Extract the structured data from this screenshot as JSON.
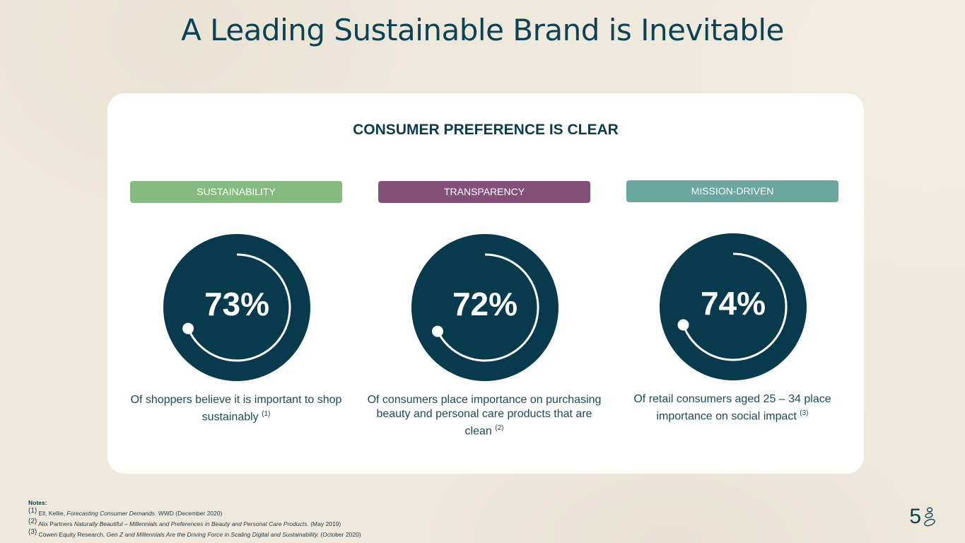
{
  "title": "A Leading Sustainable Brand is Inevitable",
  "card": {
    "heading": "CONSUMER PREFERENCE IS CLEAR",
    "columns": [
      {
        "tag": "SUSTAINABILITY",
        "color": "#84ba7f",
        "percent": "73%",
        "value": 73,
        "desc": "Of shoppers believe it is important to shop sustainably",
        "ref": "(1)"
      },
      {
        "tag": "TRANSPARENCY",
        "color": "#83507a",
        "percent": "72%",
        "value": 72,
        "desc": "Of consumers place importance on purchasing beauty and personal care products that are clean",
        "ref": "(2)"
      },
      {
        "tag": "MISSION-DRIVEN",
        "color": "#69a69d",
        "percent": "74%",
        "value": 74,
        "desc": "Of retail consumers aged 25 – 34 place importance on social impact",
        "ref": "(3)"
      }
    ]
  },
  "notes": {
    "label": "Notes:",
    "items": [
      {
        "ref": "(1)",
        "pre": "Ell, Kellie, ",
        "italic": "Forecasting Consumer Demands",
        "post": ". WWD (December 2020)"
      },
      {
        "ref": "(2)",
        "pre": "Alix Partners ",
        "italic": "Naturally Beautiful – Millennials and Preferences in Beauty and Personal Care Products.",
        "post": " (May 2019)"
      },
      {
        "ref": "(3)",
        "pre": "Cowen Equity Research, ",
        "italic": "Gen Z and Millennials Are the Driving Force in Scaling Digital and Sustainability.",
        "post": " (October 2020)"
      }
    ]
  },
  "page_number": "5"
}
